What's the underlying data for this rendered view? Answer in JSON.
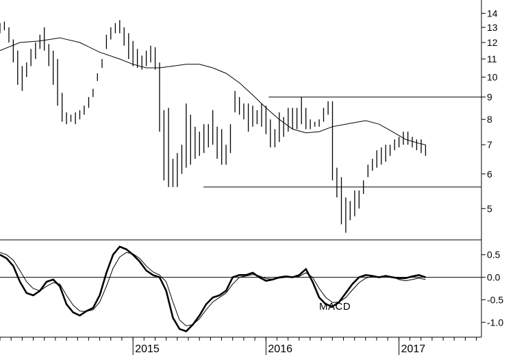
{
  "chart_data": [
    {
      "type": "bar",
      "subtype": "ohlc-price",
      "title": "",
      "xlabel": "",
      "ylabel": "",
      "yscale": "log",
      "ylim": [
        4.3,
        14.8
      ],
      "xlim": [
        2014.0,
        2017.62
      ],
      "y_ticks": [
        5,
        6,
        7,
        8,
        9,
        10,
        11,
        12,
        13,
        14
      ],
      "grid": false,
      "bar_color": "#000000",
      "moving_average": {
        "x": [
          2014.0,
          2014.15,
          2014.3,
          2014.45,
          2014.6,
          2014.75,
          2014.9,
          2015.0,
          2015.1,
          2015.2,
          2015.3,
          2015.4,
          2015.5,
          2015.6,
          2015.7,
          2015.8,
          2015.9,
          2016.0,
          2016.1,
          2016.2,
          2016.3,
          2016.4,
          2016.5,
          2016.6,
          2016.7,
          2016.75,
          2016.85,
          2016.95,
          2017.05,
          2017.15,
          2017.2
        ],
        "values": [
          11.5,
          12.0,
          12.1,
          12.3,
          12.0,
          11.4,
          11.0,
          10.7,
          10.5,
          10.5,
          10.6,
          10.7,
          10.7,
          10.5,
          10.2,
          9.7,
          9.1,
          8.5,
          8.0,
          7.6,
          7.45,
          7.5,
          7.7,
          7.8,
          7.9,
          7.95,
          7.8,
          7.5,
          7.2,
          7.05,
          7.0
        ]
      },
      "horizontal_lines": [
        {
          "y": 9.0,
          "x_from": 2016.02,
          "x_to": 2017.62
        },
        {
          "y": 5.6,
          "x_from": 2015.53,
          "x_to": 2017.62
        }
      ],
      "series": [
        {
          "x": [
            2014.0,
            2014.033,
            2014.067,
            2014.1,
            2014.133,
            2014.167,
            2014.2,
            2014.233,
            2014.267,
            2014.3,
            2014.333,
            2014.367,
            2014.4,
            2014.433,
            2014.467,
            2014.5,
            2014.533,
            2014.567,
            2014.6,
            2014.633,
            2014.667,
            2014.7,
            2014.733,
            2014.767,
            2014.8,
            2014.833,
            2014.867,
            2014.9,
            2014.933,
            2014.967,
            2015.0,
            2015.033,
            2015.067,
            2015.1,
            2015.133,
            2015.167,
            2015.2,
            2015.233,
            2015.267,
            2015.3,
            2015.333,
            2015.367,
            2015.4,
            2015.433,
            2015.467,
            2015.5,
            2015.533,
            2015.567,
            2015.6,
            2015.633,
            2015.667,
            2015.7,
            2015.733,
            2015.767,
            2015.8,
            2015.833,
            2015.867,
            2015.9,
            2015.933,
            2015.967,
            2016.0,
            2016.033,
            2016.067,
            2016.1,
            2016.133,
            2016.167,
            2016.2,
            2016.233,
            2016.267,
            2016.3,
            2016.333,
            2016.367,
            2016.4,
            2016.433,
            2016.467,
            2016.5,
            2016.533,
            2016.567,
            2016.6,
            2016.633,
            2016.667,
            2016.7,
            2016.733,
            2016.767,
            2016.8,
            2016.833,
            2016.867,
            2016.9,
            2016.933,
            2016.967,
            2017.0,
            2017.033,
            2017.067,
            2017.1,
            2017.133,
            2017.167,
            2017.2
          ],
          "high": [
            13.3,
            13.4,
            13.0,
            12.2,
            11.5,
            10.6,
            10.8,
            11.6,
            12.0,
            12.5,
            13.0,
            11.9,
            11.5,
            11.0,
            9.2,
            8.3,
            8.2,
            8.3,
            8.4,
            8.6,
            9.0,
            9.4,
            10.2,
            11.0,
            12.5,
            13.0,
            13.3,
            13.5,
            13.0,
            12.6,
            12.1,
            11.6,
            11.2,
            11.5,
            11.8,
            11.7,
            10.8,
            8.4,
            8.5,
            6.5,
            6.7,
            7.0,
            8.7,
            8.2,
            7.7,
            7.5,
            7.8,
            7.8,
            8.4,
            7.7,
            7.6,
            7.0,
            7.8,
            9.3,
            9.0,
            8.7,
            8.7,
            8.6,
            8.4,
            8.7,
            8.6,
            8.0,
            7.6,
            8.3,
            8.1,
            8.5,
            8.5,
            8.5,
            9.0,
            8.5,
            8.0,
            7.9,
            8.0,
            8.5,
            8.8,
            8.8,
            6.2,
            5.9,
            5.3,
            5.2,
            5.5,
            5.5,
            5.8,
            6.3,
            6.5,
            6.8,
            6.9,
            7.0,
            7.0,
            7.2,
            7.3,
            7.5,
            7.5,
            7.3,
            7.2,
            7.2,
            7.0
          ],
          "low": [
            12.6,
            12.8,
            12.0,
            10.8,
            9.6,
            9.3,
            10.0,
            10.6,
            11.0,
            11.6,
            11.5,
            10.6,
            9.6,
            8.6,
            7.9,
            7.8,
            7.9,
            7.8,
            8.0,
            8.2,
            8.5,
            9.0,
            9.8,
            10.5,
            11.6,
            12.2,
            12.6,
            12.6,
            11.8,
            11.0,
            10.6,
            10.5,
            10.4,
            10.6,
            10.8,
            10.4,
            7.5,
            5.8,
            5.6,
            5.6,
            5.6,
            6.0,
            6.2,
            6.3,
            6.5,
            6.6,
            6.7,
            6.9,
            7.0,
            6.5,
            6.3,
            6.3,
            6.7,
            8.3,
            8.2,
            8.0,
            7.5,
            7.7,
            7.8,
            7.7,
            7.4,
            6.9,
            6.9,
            7.1,
            7.3,
            7.5,
            7.6,
            7.6,
            7.8,
            7.6,
            7.6,
            7.7,
            7.7,
            7.9,
            8.2,
            5.8,
            5.3,
            4.6,
            4.4,
            4.7,
            4.8,
            5.0,
            5.4,
            5.9,
            6.1,
            6.2,
            6.3,
            6.4,
            6.6,
            6.8,
            6.9,
            7.0,
            7.0,
            6.9,
            6.8,
            6.7,
            6.6
          ]
        }
      ]
    },
    {
      "type": "line",
      "title": "",
      "annotation": "MACD",
      "xlabel": "",
      "ylabel": "",
      "ylim": [
        -1.3,
        0.8
      ],
      "xlim": [
        2014.0,
        2017.62
      ],
      "y_ticks": [
        -1.0,
        -0.5,
        0.0,
        0.5
      ],
      "y_tick_labels": [
        "-1.0",
        "-0.5",
        "0.0",
        "0.5"
      ],
      "x_ticks": [
        2015,
        2016,
        2017
      ],
      "x_tick_labels": [
        "2015",
        "2016",
        "2017"
      ],
      "x_minor_step": 0.0833,
      "zero_line": true,
      "grid": false,
      "series": [
        {
          "role": "macd",
          "x": [
            2014.0,
            2014.05,
            2014.1,
            2014.15,
            2014.2,
            2014.25,
            2014.3,
            2014.35,
            2014.4,
            2014.45,
            2014.5,
            2014.55,
            2014.6,
            2014.65,
            2014.7,
            2014.75,
            2014.8,
            2014.85,
            2014.9,
            2014.95,
            2015.0,
            2015.05,
            2015.1,
            2015.15,
            2015.2,
            2015.25,
            2015.3,
            2015.35,
            2015.4,
            2015.45,
            2015.5,
            2015.55,
            2015.6,
            2015.65,
            2015.7,
            2015.75,
            2015.8,
            2015.85,
            2015.9,
            2015.95,
            2016.0,
            2016.05,
            2016.1,
            2016.15,
            2016.2,
            2016.25,
            2016.3,
            2016.35,
            2016.4,
            2016.45,
            2016.5,
            2016.55,
            2016.6,
            2016.65,
            2016.7,
            2016.75,
            2016.8,
            2016.85,
            2016.9,
            2016.95,
            2017.0,
            2017.05,
            2017.1,
            2017.15,
            2017.2
          ],
          "values": [
            0.5,
            0.42,
            0.25,
            -0.1,
            -0.35,
            -0.4,
            -0.3,
            -0.1,
            -0.05,
            -0.2,
            -0.6,
            -0.78,
            -0.85,
            -0.75,
            -0.68,
            -0.4,
            0.1,
            0.5,
            0.68,
            0.62,
            0.5,
            0.35,
            0.15,
            0.05,
            0.0,
            -0.3,
            -0.9,
            -1.15,
            -1.2,
            -1.05,
            -0.85,
            -0.6,
            -0.45,
            -0.4,
            -0.3,
            0.0,
            0.05,
            0.05,
            0.1,
            0.0,
            -0.08,
            -0.05,
            0.0,
            0.02,
            0.0,
            0.05,
            0.18,
            -0.1,
            -0.45,
            -0.6,
            -0.65,
            -0.55,
            -0.35,
            -0.15,
            0.0,
            0.05,
            0.03,
            0.0,
            0.03,
            0.0,
            -0.02,
            -0.02,
            0.02,
            0.05,
            0.0
          ]
        },
        {
          "role": "signal",
          "x": [
            2014.0,
            2014.05,
            2014.1,
            2014.15,
            2014.2,
            2014.25,
            2014.3,
            2014.35,
            2014.4,
            2014.45,
            2014.5,
            2014.55,
            2014.6,
            2014.65,
            2014.7,
            2014.75,
            2014.8,
            2014.85,
            2014.9,
            2014.95,
            2015.0,
            2015.05,
            2015.1,
            2015.15,
            2015.2,
            2015.25,
            2015.3,
            2015.35,
            2015.4,
            2015.45,
            2015.5,
            2015.55,
            2015.6,
            2015.65,
            2015.7,
            2015.75,
            2015.8,
            2015.85,
            2015.9,
            2015.95,
            2016.0,
            2016.05,
            2016.1,
            2016.15,
            2016.2,
            2016.25,
            2016.3,
            2016.35,
            2016.4,
            2016.45,
            2016.5,
            2016.55,
            2016.6,
            2016.65,
            2016.7,
            2016.75,
            2016.8,
            2016.85,
            2016.9,
            2016.95,
            2017.0,
            2017.05,
            2017.1,
            2017.15,
            2017.2
          ],
          "values": [
            0.55,
            0.5,
            0.38,
            0.15,
            -0.1,
            -0.25,
            -0.3,
            -0.2,
            -0.12,
            -0.15,
            -0.4,
            -0.62,
            -0.75,
            -0.76,
            -0.72,
            -0.55,
            -0.2,
            0.2,
            0.45,
            0.55,
            0.52,
            0.42,
            0.25,
            0.12,
            0.05,
            -0.1,
            -0.55,
            -0.95,
            -1.08,
            -1.05,
            -0.92,
            -0.72,
            -0.55,
            -0.45,
            -0.35,
            -0.15,
            0.0,
            0.03,
            0.06,
            0.03,
            -0.03,
            -0.04,
            -0.02,
            0.0,
            0.0,
            0.02,
            0.1,
            0.0,
            -0.25,
            -0.45,
            -0.56,
            -0.55,
            -0.45,
            -0.28,
            -0.12,
            -0.02,
            0.02,
            0.01,
            0.02,
            0.01,
            -0.05,
            -0.08,
            -0.05,
            -0.02,
            -0.05
          ]
        }
      ]
    }
  ]
}
